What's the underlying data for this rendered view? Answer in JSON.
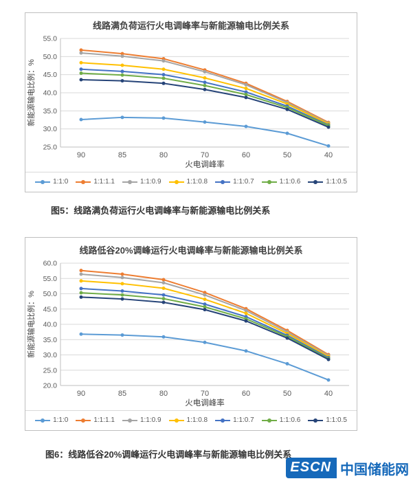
{
  "colors": {
    "grid": "#D9D9D9",
    "axis": "#BFBFBF",
    "tick": "#595959",
    "text": "#404040",
    "box_border": "#BFBFBF",
    "watermark_blue": "#1669BA"
  },
  "captions": [
    "图5：线路满负荷运行火电调峰率与新能源输电比例关系",
    "图6：线路低谷20%调峰运行火电调峰率与新能源输电比例关系"
  ],
  "watermark": {
    "badge": "ESCN",
    "name": "中国储能网"
  },
  "chart_data": [
    {
      "type": "line",
      "title": "线路满负荷运行火电调峰率与新能源输电比例关系",
      "xlabel": "火电调峰率",
      "ylabel": "新能源输电比例：%",
      "categories": [
        "90",
        "85",
        "80",
        "70",
        "60",
        "50",
        "40"
      ],
      "ylim": [
        25,
        55
      ],
      "yticks": [
        25,
        30,
        35,
        40,
        45,
        50,
        55
      ],
      "grid": true,
      "legend_position": "bottom",
      "series": [
        {
          "name": "1:1:0",
          "color": "#5B9BD5",
          "values": [
            32.6,
            33.2,
            33.0,
            31.9,
            30.7,
            28.8,
            25.3
          ]
        },
        {
          "name": "1:1:1.1",
          "color": "#ED7D31",
          "values": [
            51.8,
            50.8,
            49.4,
            46.3,
            42.6,
            37.6,
            31.8
          ]
        },
        {
          "name": "1:1:0.9",
          "color": "#A5A5A5",
          "values": [
            51.0,
            50.1,
            48.8,
            45.8,
            42.2,
            37.3,
            31.6
          ]
        },
        {
          "name": "1:1:0.8",
          "color": "#FFC000",
          "values": [
            48.3,
            47.6,
            46.5,
            44.1,
            41.2,
            36.9,
            31.4
          ]
        },
        {
          "name": "1:1:0.7",
          "color": "#4472C4",
          "values": [
            46.5,
            45.9,
            45.0,
            42.9,
            40.2,
            36.3,
            31.1
          ]
        },
        {
          "name": "1:1:0.6",
          "color": "#70AD47",
          "values": [
            45.4,
            44.9,
            44.0,
            42.0,
            39.5,
            35.9,
            30.9
          ]
        },
        {
          "name": "1:1:0.5",
          "color": "#264478",
          "values": [
            43.6,
            43.3,
            42.6,
            40.9,
            38.7,
            35.4,
            30.5
          ]
        }
      ]
    },
    {
      "type": "line",
      "title": "线路低谷20%调峰运行火电调峰率与新能源输电比例关系",
      "xlabel": "火电调峰率",
      "ylabel": "新能源输电比例：%",
      "categories": [
        "90",
        "85",
        "80",
        "70",
        "60",
        "50",
        "40"
      ],
      "ylim": [
        20,
        60
      ],
      "yticks": [
        20,
        25,
        30,
        35,
        40,
        45,
        50,
        55,
        60
      ],
      "grid": true,
      "legend_position": "bottom",
      "series": [
        {
          "name": "1:1:0",
          "color": "#5B9BD5",
          "values": [
            36.8,
            36.5,
            35.9,
            34.1,
            31.3,
            27.1,
            21.8
          ]
        },
        {
          "name": "1:1:1.1",
          "color": "#ED7D31",
          "values": [
            57.6,
            56.4,
            54.6,
            50.4,
            45.1,
            38.0,
            30.1
          ]
        },
        {
          "name": "1:1:0.9",
          "color": "#A5A5A5",
          "values": [
            56.4,
            55.3,
            53.6,
            49.6,
            44.5,
            37.5,
            29.8
          ]
        },
        {
          "name": "1:1:0.8",
          "color": "#FFC000",
          "values": [
            54.2,
            53.3,
            51.8,
            48.2,
            43.6,
            37.0,
            29.5
          ]
        },
        {
          "name": "1:1:0.7",
          "color": "#4472C4",
          "values": [
            51.7,
            50.9,
            49.6,
            46.6,
            42.5,
            36.4,
            29.1
          ]
        },
        {
          "name": "1:1:0.6",
          "color": "#70AD47",
          "values": [
            50.3,
            49.6,
            48.4,
            45.7,
            41.8,
            36.0,
            28.8
          ]
        },
        {
          "name": "1:1:0.5",
          "color": "#264478",
          "values": [
            48.9,
            48.3,
            47.2,
            44.8,
            41.1,
            35.5,
            28.5
          ]
        }
      ]
    }
  ]
}
